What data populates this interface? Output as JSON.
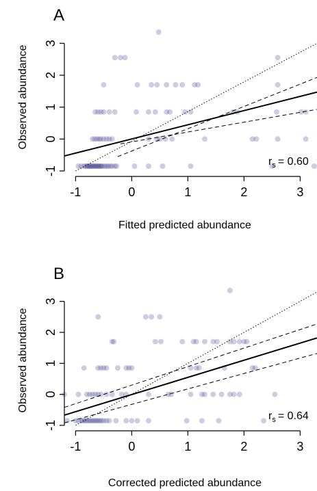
{
  "chart_data": [
    {
      "type": "scatter",
      "panel_label": "A",
      "xlabel": "Fitted predicted abundance",
      "ylabel": "Observed abundance",
      "xticks": [
        "-1",
        "0",
        "1",
        "2",
        "3"
      ],
      "yticks": [
        "-1",
        "0",
        "1",
        "2",
        "3"
      ],
      "xlim": [
        -1.2,
        3.3
      ],
      "ylim": [
        -1.0,
        3.5
      ],
      "stat_label": "r",
      "stat_sub": "s",
      "stat_value": "= 0.60",
      "point_color": "#1a1a7a",
      "points": [
        [
          -0.95,
          -0.85
        ],
        [
          -0.9,
          -0.85
        ],
        [
          -0.85,
          -0.85
        ],
        [
          -0.82,
          -0.85
        ],
        [
          -0.8,
          -0.85
        ],
        [
          -0.78,
          -0.85
        ],
        [
          -0.76,
          -0.85
        ],
        [
          -0.74,
          -0.85
        ],
        [
          -0.72,
          -0.85
        ],
        [
          -0.7,
          -0.85
        ],
        [
          -0.68,
          -0.85
        ],
        [
          -0.66,
          -0.85
        ],
        [
          -0.64,
          -0.85
        ],
        [
          -0.62,
          -0.85
        ],
        [
          -0.6,
          -0.85
        ],
        [
          -0.58,
          -0.85
        ],
        [
          -0.56,
          -0.85
        ],
        [
          -0.54,
          -0.85
        ],
        [
          -0.52,
          -0.85
        ],
        [
          -0.48,
          -0.85
        ],
        [
          -0.45,
          -0.85
        ],
        [
          -0.42,
          -0.85
        ],
        [
          -0.38,
          -0.85
        ],
        [
          -0.35,
          -0.85
        ],
        [
          -0.3,
          -0.85
        ],
        [
          -0.27,
          -0.85
        ],
        [
          0.05,
          -0.85
        ],
        [
          0.3,
          -0.85
        ],
        [
          0.55,
          -0.85
        ],
        [
          1.05,
          -0.85
        ],
        [
          2.5,
          -0.85
        ],
        [
          3.25,
          -0.85
        ],
        [
          -0.7,
          0.0
        ],
        [
          -0.66,
          0.0
        ],
        [
          -0.62,
          0.0
        ],
        [
          -0.58,
          0.0
        ],
        [
          -0.55,
          0.0
        ],
        [
          -0.5,
          0.0
        ],
        [
          -0.45,
          0.0
        ],
        [
          -0.4,
          0.0
        ],
        [
          -0.35,
          0.0
        ],
        [
          0.3,
          0.0
        ],
        [
          0.45,
          0.0
        ],
        [
          0.5,
          0.0
        ],
        [
          0.6,
          0.0
        ],
        [
          0.72,
          0.0
        ],
        [
          1.3,
          0.0
        ],
        [
          2.15,
          0.0
        ],
        [
          2.22,
          0.0
        ],
        [
          2.6,
          0.0
        ],
        [
          3.1,
          0.0
        ],
        [
          -0.65,
          0.85
        ],
        [
          -0.6,
          0.85
        ],
        [
          -0.55,
          0.85
        ],
        [
          -0.5,
          0.85
        ],
        [
          -0.4,
          0.85
        ],
        [
          -0.3,
          0.85
        ],
        [
          0.08,
          0.85
        ],
        [
          0.3,
          0.85
        ],
        [
          0.42,
          0.85
        ],
        [
          0.62,
          0.85
        ],
        [
          0.68,
          0.85
        ],
        [
          0.95,
          0.85
        ],
        [
          1.05,
          0.85
        ],
        [
          1.8,
          0.85
        ],
        [
          1.88,
          0.85
        ],
        [
          2.58,
          0.85
        ],
        [
          3.02,
          0.85
        ],
        [
          3.1,
          0.85
        ],
        [
          -0.5,
          1.7
        ],
        [
          0.1,
          1.7
        ],
        [
          0.35,
          1.7
        ],
        [
          0.45,
          1.7
        ],
        [
          0.62,
          1.7
        ],
        [
          0.78,
          1.7
        ],
        [
          0.9,
          1.7
        ],
        [
          1.12,
          1.7
        ],
        [
          1.18,
          1.7
        ],
        [
          2.6,
          1.7
        ],
        [
          -0.3,
          2.55
        ],
        [
          -0.2,
          2.55
        ],
        [
          -0.12,
          2.55
        ],
        [
          2.6,
          2.55
        ],
        [
          0.48,
          3.35
        ]
      ],
      "fit_line": [
        [
          -1.2,
          -0.53
        ],
        [
          3.3,
          1.47
        ]
      ],
      "ci_upper": [
        [
          -0.25,
          -0.55
        ],
        [
          3.3,
          1.93
        ]
      ],
      "ci_lower": [
        [
          -0.2,
          -0.15
        ],
        [
          3.3,
          0.93
        ]
      ],
      "identity_line": [
        [
          -1.0,
          -1.0
        ],
        [
          3.3,
          3.0
        ]
      ]
    },
    {
      "type": "scatter",
      "panel_label": "B",
      "xlabel": "Corrected predicted abundance",
      "ylabel": "Observed abundance",
      "xticks": [
        "-1",
        "0",
        "1",
        "2",
        "3"
      ],
      "yticks": [
        "-1",
        "0",
        "1",
        "2",
        "3"
      ],
      "xlim": [
        -1.2,
        3.3
      ],
      "ylim": [
        -1.0,
        3.5
      ],
      "stat_label": "r",
      "stat_sub": "s",
      "stat_value": "= 0.64",
      "point_color": "#1a1a7a",
      "points": [
        [
          -1.15,
          -0.85
        ],
        [
          -1.0,
          -0.85
        ],
        [
          -0.95,
          -0.85
        ],
        [
          -0.9,
          -0.85
        ],
        [
          -0.87,
          -0.85
        ],
        [
          -0.84,
          -0.85
        ],
        [
          -0.81,
          -0.85
        ],
        [
          -0.78,
          -0.85
        ],
        [
          -0.75,
          -0.85
        ],
        [
          -0.72,
          -0.85
        ],
        [
          -0.69,
          -0.85
        ],
        [
          -0.66,
          -0.85
        ],
        [
          -0.63,
          -0.85
        ],
        [
          -0.6,
          -0.85
        ],
        [
          -0.57,
          -0.85
        ],
        [
          -0.54,
          -0.85
        ],
        [
          -0.5,
          -0.85
        ],
        [
          -0.45,
          -0.85
        ],
        [
          -0.4,
          -0.85
        ],
        [
          -0.28,
          -0.85
        ],
        [
          -0.1,
          -0.85
        ],
        [
          0.0,
          -0.85
        ],
        [
          0.1,
          -0.85
        ],
        [
          0.3,
          -0.85
        ],
        [
          0.98,
          -0.85
        ],
        [
          1.25,
          -0.85
        ],
        [
          1.55,
          -0.85
        ],
        [
          2.35,
          -0.85
        ],
        [
          -1.2,
          0.0
        ],
        [
          -0.95,
          0.0
        ],
        [
          -0.8,
          0.0
        ],
        [
          -0.75,
          0.0
        ],
        [
          -0.7,
          0.0
        ],
        [
          -0.65,
          0.0
        ],
        [
          -0.6,
          0.0
        ],
        [
          -0.55,
          0.0
        ],
        [
          -0.45,
          0.0
        ],
        [
          -0.35,
          0.0
        ],
        [
          -0.18,
          0.0
        ],
        [
          -0.1,
          0.0
        ],
        [
          0.3,
          0.0
        ],
        [
          0.65,
          0.0
        ],
        [
          0.7,
          0.0
        ],
        [
          1.05,
          0.0
        ],
        [
          1.25,
          0.0
        ],
        [
          1.3,
          0.0
        ],
        [
          1.45,
          0.0
        ],
        [
          1.6,
          0.0
        ],
        [
          1.75,
          0.0
        ],
        [
          1.82,
          0.0
        ],
        [
          1.92,
          0.0
        ],
        [
          2.55,
          0.0
        ],
        [
          -0.85,
          0.85
        ],
        [
          -0.6,
          0.85
        ],
        [
          -0.55,
          0.85
        ],
        [
          -0.5,
          0.85
        ],
        [
          -0.45,
          0.85
        ],
        [
          -0.25,
          0.85
        ],
        [
          -0.1,
          0.85
        ],
        [
          -0.05,
          0.85
        ],
        [
          0.0,
          0.85
        ],
        [
          1.05,
          0.85
        ],
        [
          1.15,
          0.85
        ],
        [
          1.2,
          0.85
        ],
        [
          1.65,
          0.85
        ],
        [
          2.15,
          0.85
        ],
        [
          2.2,
          0.85
        ],
        [
          -0.35,
          1.7
        ],
        [
          -0.32,
          1.7
        ],
        [
          0.42,
          1.7
        ],
        [
          0.52,
          1.7
        ],
        [
          0.9,
          1.7
        ],
        [
          1.1,
          1.7
        ],
        [
          1.15,
          1.7
        ],
        [
          1.3,
          1.7
        ],
        [
          1.45,
          1.7
        ],
        [
          1.52,
          1.7
        ],
        [
          1.75,
          1.7
        ],
        [
          1.82,
          1.7
        ],
        [
          1.92,
          1.7
        ],
        [
          2.0,
          1.7
        ],
        [
          2.05,
          1.7
        ],
        [
          -0.6,
          2.5
        ],
        [
          0.25,
          2.5
        ],
        [
          0.35,
          2.5
        ],
        [
          0.5,
          2.5
        ],
        [
          1.75,
          3.35
        ]
      ],
      "fit_line": [
        [
          -1.2,
          -0.67
        ],
        [
          3.3,
          1.82
        ]
      ],
      "ci_upper": [
        [
          -1.2,
          -0.42
        ],
        [
          3.3,
          2.27
        ]
      ],
      "ci_lower": [
        [
          -1.2,
          -0.92
        ],
        [
          3.3,
          1.32
        ]
      ],
      "identity_line": [
        [
          -1.0,
          -1.0
        ],
        [
          3.3,
          3.3
        ]
      ]
    }
  ]
}
